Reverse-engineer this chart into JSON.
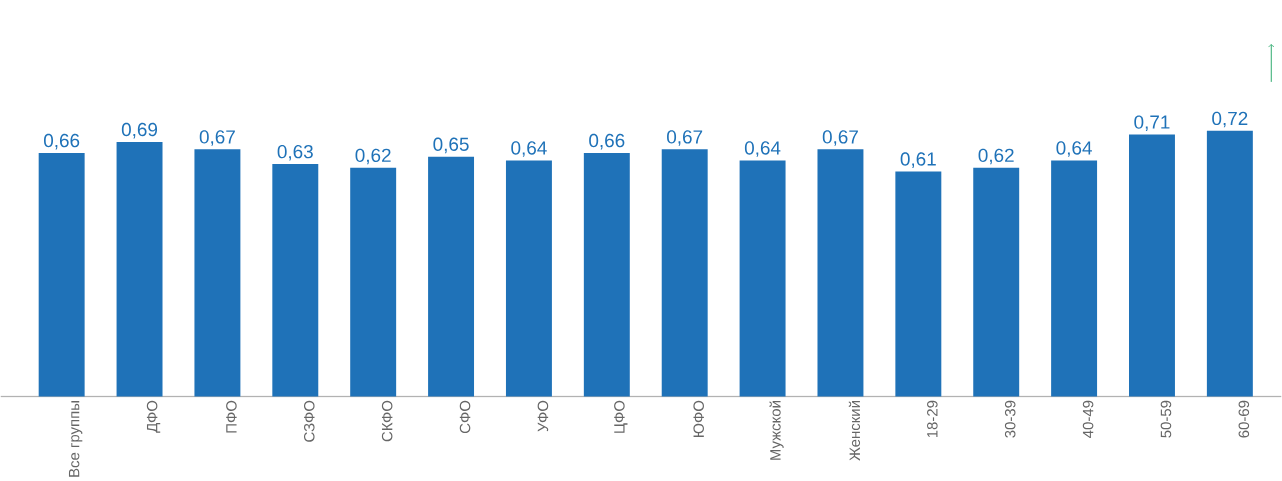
{
  "chart_data": {
    "type": "bar",
    "categories": [
      "Все группы",
      "ДФО",
      "ПФО",
      "СЗФО",
      "СКФО",
      "СФО",
      "УФО",
      "ЦФО",
      "ЮФО",
      "Мужской",
      "Женский",
      "18-29",
      "30-39",
      "40-49",
      "50-59",
      "60-69"
    ],
    "values": [
      0.66,
      0.69,
      0.67,
      0.63,
      0.62,
      0.65,
      0.64,
      0.66,
      0.67,
      0.64,
      0.67,
      0.61,
      0.62,
      0.64,
      0.71,
      0.72
    ],
    "value_labels": [
      "0,66",
      "0,69",
      "0,67",
      "0,63",
      "0,62",
      "0,65",
      "0,64",
      "0,66",
      "0,67",
      "0,64",
      "0,67",
      "0,61",
      "0,62",
      "0,64",
      "0,71",
      "0,72"
    ],
    "color": "#1f72b8"
  }
}
